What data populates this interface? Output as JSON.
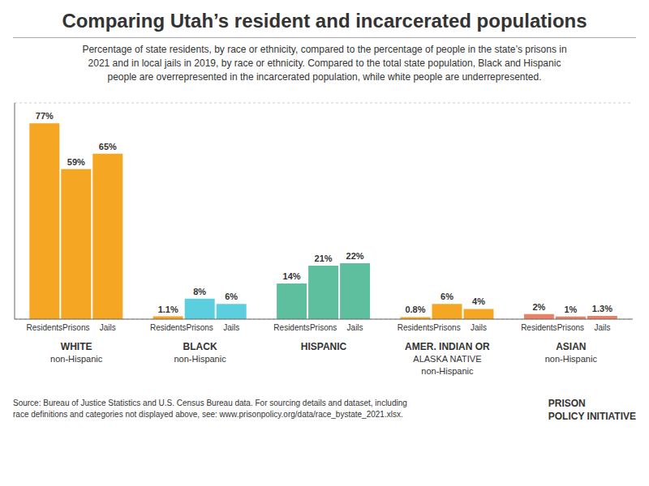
{
  "chart_data": {
    "type": "bar",
    "title": "Comparing Utah’s resident and incarcerated populations",
    "subtitle": "Percentage of state residents, by race or ethnicity, compared to the percentage of people in the state’s prisons in\n2021 and in local jails in 2019, by race or ethnicity. Compared to the total state population, Black and Hispanic\npeople are overrepresented in the incarcerated population, while white people are underrepresented.",
    "categories": [
      "WHITE\nnon-Hispanic",
      "BLACK\nnon-Hispanic",
      "HISPANIC",
      "AMER. INDIAN OR\nALASKA NATIVE\nnon-Hispanic",
      "ASIAN\nnon-Hispanic"
    ],
    "series": [
      {
        "name": "Residents",
        "values": [
          77,
          1.1,
          14,
          0.8,
          2
        ],
        "value_labels": [
          "77%",
          "1.1%",
          "14%",
          "0.8%",
          "2%"
        ],
        "colors": [
          "#f5a623",
          "#f5a623",
          "#5dbf9e",
          "#f5a623",
          "#e8836a"
        ]
      },
      {
        "name": "Prisons",
        "values": [
          59,
          8,
          21,
          6,
          1
        ],
        "value_labels": [
          "59%",
          "8%",
          "21%",
          "6%",
          "1%"
        ],
        "colors": [
          "#f5a623",
          "#5bcfde",
          "#5dbf9e",
          "#f5a623",
          "#e8836a"
        ]
      },
      {
        "name": "Jails",
        "values": [
          65,
          6,
          22,
          4,
          1.3
        ],
        "value_labels": [
          "65%",
          "6%",
          "22%",
          "4%",
          "1.3%"
        ],
        "colors": [
          "#f5a623",
          "#5bcfde",
          "#5dbf9e",
          "#f5a623",
          "#e8836a"
        ]
      }
    ],
    "ylim": [
      0,
      85
    ],
    "yticks": [
      20,
      40,
      60,
      80
    ],
    "grid": true,
    "data_labels": true,
    "tick_labels": "x",
    "annotations": [
      "Source: Bureau of Justice Statistics and U.S. Census Bureau data. For sourcing details and dataset, including\nrace definitions and categories not displayed above, see: www.prisonpolicy.org/data/race_bystate_2021.xlsx.",
      "PRISON\nPOLICY INITIATIVE"
    ]
  }
}
